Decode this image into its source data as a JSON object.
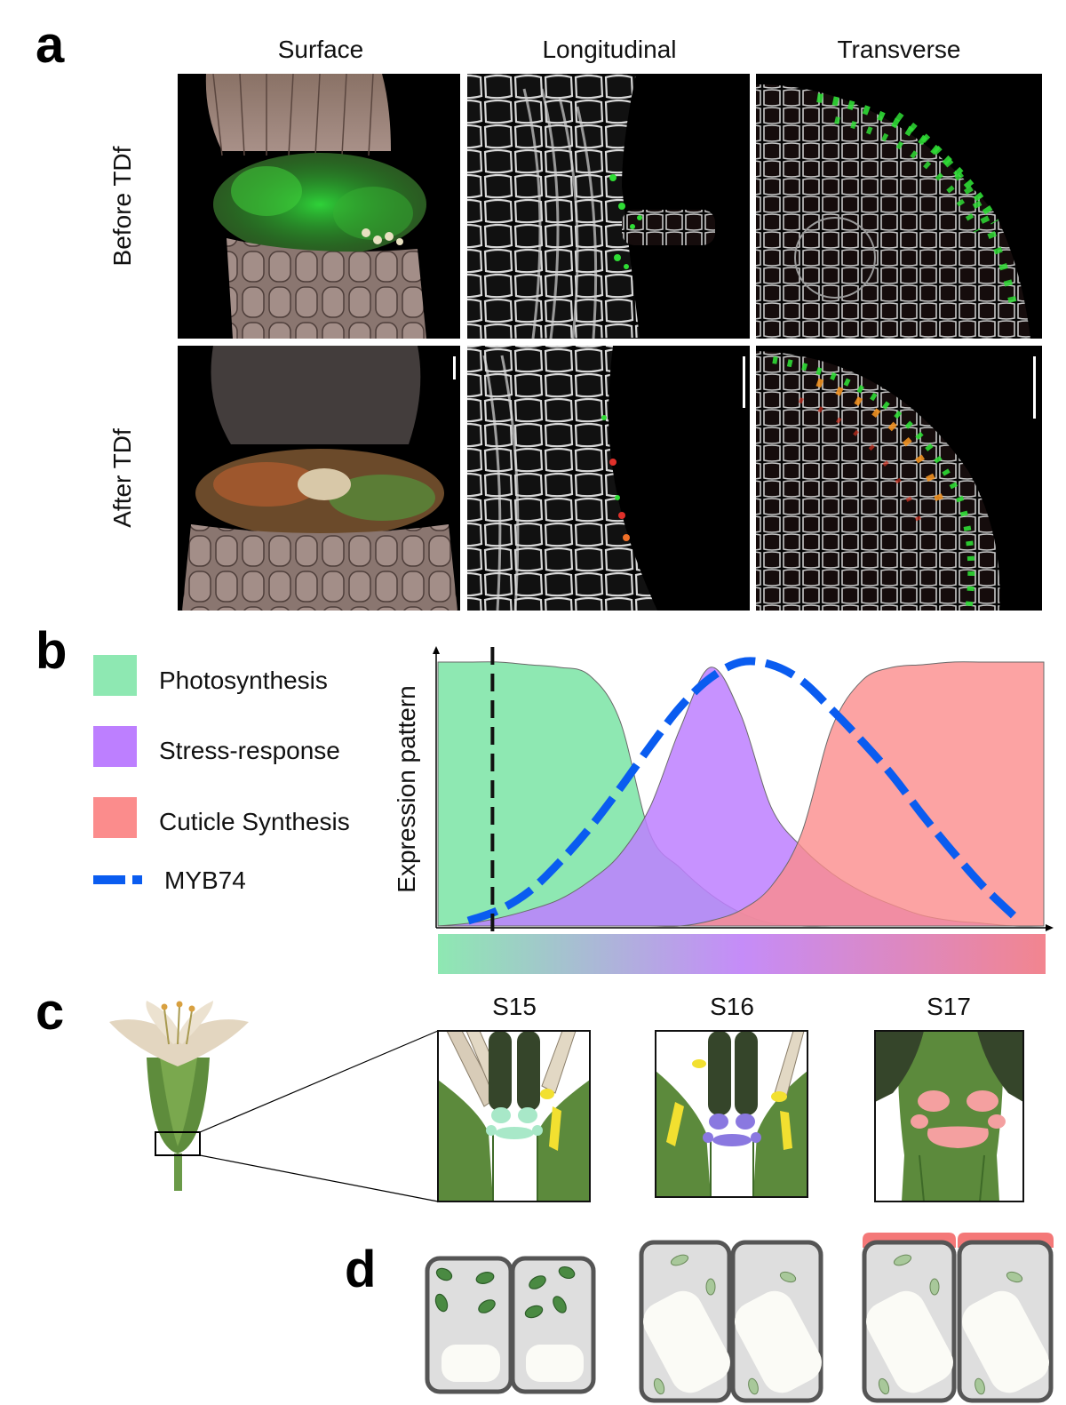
{
  "panel_a": {
    "letter": "a",
    "columns": [
      "Surface",
      "Longitudinal",
      "Transverse"
    ],
    "rows": [
      "Before TDf",
      "After TDf"
    ]
  },
  "panel_b": {
    "letter": "b",
    "legend": [
      {
        "label": "Photosynthesis",
        "color": "#8ee8b2",
        "kind": "fill"
      },
      {
        "label": "Stress-response",
        "color": "#bd7fff",
        "kind": "fill"
      },
      {
        "label": "Cuticle Synthesis",
        "color": "#fb8c8c",
        "kind": "fill"
      },
      {
        "label": "MYB74",
        "color": "#0a5cf0",
        "kind": "dashed-line"
      }
    ],
    "ylabel": "Expression pattern",
    "gradient_colors": [
      "#8ee8b2",
      "#c58cf8",
      "#f2858f"
    ]
  },
  "panel_c": {
    "letter": "c",
    "stages": [
      "S15",
      "S16",
      "S17"
    ],
    "stage_colors": [
      "#a8e8c8",
      "#8a78e0",
      "#f4a0a0"
    ]
  },
  "panel_d": {
    "letter": "d"
  },
  "chart_data": {
    "type": "area",
    "title": "",
    "xlabel": "",
    "ylabel": "Expression pattern",
    "x": [
      0,
      0.05,
      0.1,
      0.15,
      0.2,
      0.25,
      0.3,
      0.35,
      0.4,
      0.45,
      0.5,
      0.55,
      0.6,
      0.65,
      0.7,
      0.75,
      0.8,
      0.85,
      0.9,
      0.95,
      1.0
    ],
    "ylim": [
      0,
      1
    ],
    "xlim": [
      0,
      1
    ],
    "grid": false,
    "legend_position": "left",
    "series": [
      {
        "name": "Photosynthesis",
        "values": [
          1.0,
          1.0,
          1.0,
          0.99,
          0.98,
          0.95,
          0.78,
          0.35,
          0.22,
          0.12,
          0.05,
          0.01,
          0.0,
          0.0,
          0.0,
          0.0,
          0.0,
          0.0,
          0.0,
          0.0,
          0.0
        ]
      },
      {
        "name": "Stress-response",
        "values": [
          0.0,
          0.01,
          0.03,
          0.06,
          0.1,
          0.17,
          0.27,
          0.45,
          0.75,
          0.98,
          0.8,
          0.45,
          0.3,
          0.2,
          0.13,
          0.08,
          0.04,
          0.02,
          0.01,
          0.0,
          0.0
        ]
      },
      {
        "name": "Cuticle Synthesis",
        "values": [
          0.0,
          0.0,
          0.0,
          0.0,
          0.0,
          0.0,
          0.0,
          0.0,
          0.0,
          0.02,
          0.06,
          0.15,
          0.35,
          0.75,
          0.93,
          0.98,
          0.99,
          1.0,
          1.0,
          1.0,
          1.0
        ]
      },
      {
        "name": "MYB74",
        "values": [
          null,
          0.02,
          0.06,
          0.13,
          0.24,
          0.37,
          0.52,
          0.68,
          0.83,
          0.94,
          1.0,
          0.99,
          0.93,
          0.82,
          0.7,
          0.57,
          0.42,
          0.28,
          0.15,
          0.04,
          null
        ]
      }
    ],
    "marker_x": 0.09
  }
}
